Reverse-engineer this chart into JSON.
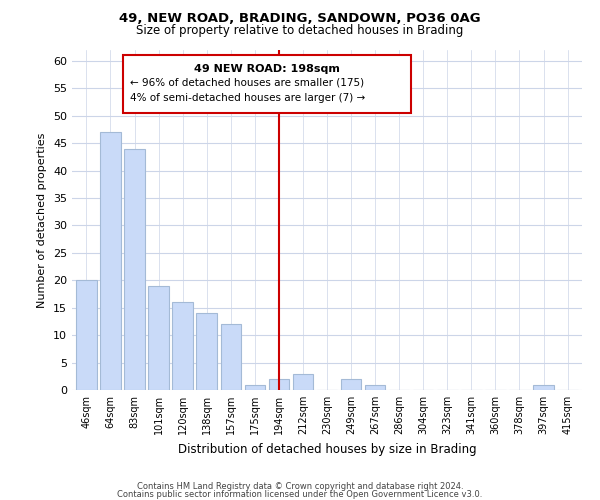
{
  "title": "49, NEW ROAD, BRADING, SANDOWN, PO36 0AG",
  "subtitle": "Size of property relative to detached houses in Brading",
  "xlabel": "Distribution of detached houses by size in Brading",
  "ylabel": "Number of detached properties",
  "bar_labels": [
    "46sqm",
    "64sqm",
    "83sqm",
    "101sqm",
    "120sqm",
    "138sqm",
    "157sqm",
    "175sqm",
    "194sqm",
    "212sqm",
    "230sqm",
    "249sqm",
    "267sqm",
    "286sqm",
    "304sqm",
    "323sqm",
    "341sqm",
    "360sqm",
    "378sqm",
    "397sqm",
    "415sqm"
  ],
  "bar_values": [
    20,
    47,
    44,
    19,
    16,
    14,
    12,
    1,
    2,
    3,
    0,
    2,
    1,
    0,
    0,
    0,
    0,
    0,
    0,
    1,
    0
  ],
  "bar_color": "#c9daf8",
  "bar_edge_color": "#a4bad6",
  "vline_x_index": 8,
  "vline_color": "#cc0000",
  "annotation_title": "49 NEW ROAD: 198sqm",
  "annotation_line1": "← 96% of detached houses are smaller (175)",
  "annotation_line2": "4% of semi-detached houses are larger (7) →",
  "annotation_box_color": "#ffffff",
  "annotation_box_edge": "#cc0000",
  "ylim": [
    0,
    62
  ],
  "yticks": [
    0,
    5,
    10,
    15,
    20,
    25,
    30,
    35,
    40,
    45,
    50,
    55,
    60
  ],
  "footer_line1": "Contains HM Land Registry data © Crown copyright and database right 2024.",
  "footer_line2": "Contains public sector information licensed under the Open Government Licence v3.0.",
  "background_color": "#ffffff",
  "grid_color": "#ccd5e8"
}
